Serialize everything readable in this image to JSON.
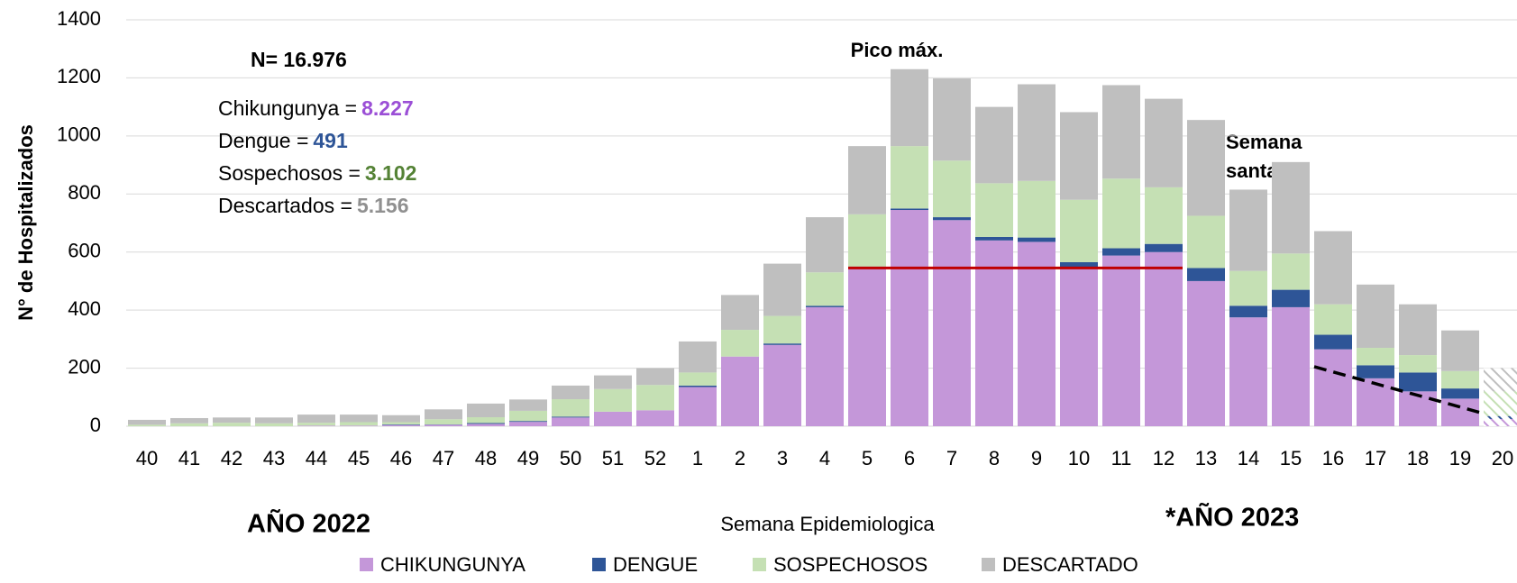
{
  "chart_data": {
    "type": "stacked_bar",
    "categories": [
      "40",
      "41",
      "42",
      "43",
      "44",
      "45",
      "46",
      "47",
      "48",
      "49",
      "50",
      "51",
      "52",
      "1",
      "2",
      "3",
      "4",
      "5",
      "6",
      "7",
      "8",
      "9",
      "10",
      "11",
      "12",
      "13",
      "14",
      "15",
      "16",
      "17",
      "18",
      "19",
      "20"
    ],
    "series": [
      {
        "name": "CHIKUNGUNYA",
        "color": "#c497d9",
        "values": [
          0,
          0,
          0,
          0,
          2,
          2,
          4,
          5,
          8,
          15,
          30,
          50,
          55,
          135,
          240,
          280,
          410,
          545,
          745,
          710,
          640,
          635,
          545,
          588,
          600,
          500,
          375,
          410,
          265,
          165,
          120,
          95,
          25
        ]
      },
      {
        "name": "DENGUE",
        "color": "#2e5597",
        "values": [
          0,
          0,
          0,
          0,
          0,
          0,
          2,
          1,
          3,
          3,
          3,
          0,
          0,
          5,
          0,
          5,
          5,
          5,
          5,
          10,
          12,
          15,
          20,
          25,
          28,
          45,
          40,
          60,
          50,
          45,
          65,
          35,
          10
        ]
      },
      {
        "name": "SOSPECHOSOS",
        "color": "#c5e0b4",
        "values": [
          5,
          10,
          12,
          10,
          10,
          12,
          8,
          18,
          20,
          35,
          60,
          78,
          87,
          45,
          92,
          95,
          115,
          180,
          215,
          195,
          185,
          195,
          215,
          240,
          195,
          180,
          120,
          125,
          105,
          60,
          60,
          60,
          85
        ]
      },
      {
        "name": "DESCARTADO",
        "color": "#bfbfbf",
        "values": [
          17,
          18,
          18,
          20,
          28,
          26,
          24,
          34,
          47,
          39,
          47,
          47,
          58,
          107,
          120,
          180,
          190,
          235,
          265,
          283,
          263,
          333,
          302,
          322,
          305,
          330,
          280,
          315,
          252,
          218,
          175,
          140,
          80
        ]
      }
    ],
    "hatched_last": true,
    "ylim": [
      0,
      1400
    ],
    "yticks": [
      0,
      200,
      400,
      600,
      800,
      1000,
      1200,
      1400
    ],
    "grid": true,
    "x_label": "Semana Epidemiologica",
    "y_label": "N° de Hospitalizados",
    "total_label": "N= 16.976",
    "summary": [
      {
        "label": "Chikungunya =",
        "value": "8.227",
        "color": "#9b4fd6"
      },
      {
        "label": "Dengue =",
        "value": "491",
        "color": "#2e5597"
      },
      {
        "label": "Sospechosos =",
        "value": "3.102",
        "color": "#548235"
      },
      {
        "label": "Descartados =",
        "value": "5.156",
        "color": "#909090"
      }
    ],
    "peak_label": "Pico máx.",
    "holy_week_label": [
      "Semana",
      "santa"
    ],
    "year_labels": [
      "AÑO 2022",
      "*AÑO 2023"
    ],
    "ref_line": {
      "value": 545,
      "from": "5",
      "to": "12",
      "color": "#c00000"
    },
    "trend_line": {
      "from": "16",
      "to": "19",
      "values": [
        205,
        48
      ]
    }
  }
}
